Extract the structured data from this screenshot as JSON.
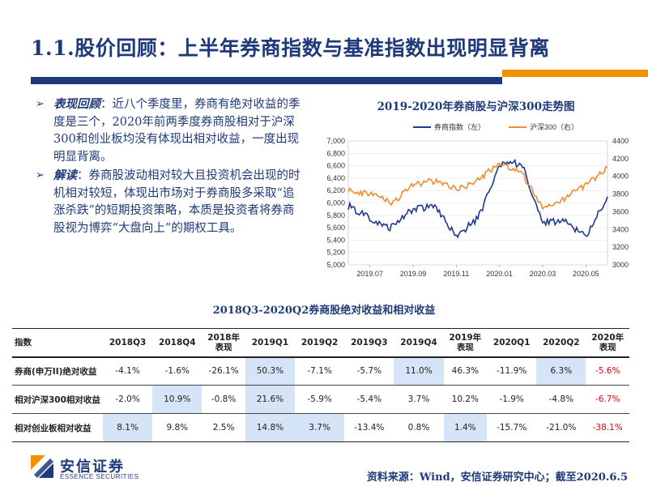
{
  "header": {
    "title": "1.1.股价回顾：上半年券商指数与基准指数出现明显背离"
  },
  "bullets": [
    {
      "lead": "表现回顾",
      "text": "：近八个季度里，券商有绝对收益的季度是三个，2020年前两季度券商股相对于沪深300和创业板均没有体现出相对收益，一度出现明显背离。"
    },
    {
      "lead": "解读",
      "text": "：券商股波动相对较大且投资机会出现的时机相对较短，体现出市场对于券商股多采取“追涨杀跌”的短期投资策略，本质是投资者将券商股视为博弈“大盘向上”的期权工具。"
    }
  ],
  "chart_data": {
    "type": "line",
    "title": "2019-2020年券商股与沪深300走势图",
    "x_ticks": [
      "2019.07",
      "2019.09",
      "2019.11",
      "2020.01",
      "2020.03",
      "2020.05"
    ],
    "x_range": [
      "2019.06",
      "2020.06"
    ],
    "y_left": {
      "range": [
        5000,
        7000
      ],
      "ticks": [
        "5,000",
        "5,200",
        "5,400",
        "5,600",
        "5,800",
        "6,000",
        "6,200",
        "6,400",
        "6,600",
        "6,800",
        "7,000"
      ]
    },
    "y_right": {
      "range": [
        3000,
        4400
      ],
      "ticks": [
        "3000",
        "3200",
        "3400",
        "3600",
        "3800",
        "4000",
        "4200",
        "4400"
      ]
    },
    "grid": true,
    "legend_position": "top",
    "series": [
      {
        "name": "券商指数（左）",
        "axis": "left",
        "color": "#1f3a8c",
        "x": [
          "2019.06",
          "2019.07",
          "2019.08",
          "2019.09",
          "2019.10",
          "2019.11",
          "2019.12",
          "2020.01",
          "2020.02",
          "2020.03",
          "2020.04",
          "2020.05",
          "2020.06"
        ],
        "values": [
          5950,
          5750,
          5600,
          5900,
          5950,
          5450,
          5750,
          6600,
          6650,
          5700,
          5700,
          5450,
          6100
        ]
      },
      {
        "name": "沪深300（右）",
        "axis": "right",
        "color": "#f08c32",
        "x": [
          "2019.06",
          "2019.07",
          "2019.08",
          "2019.09",
          "2019.10",
          "2019.11",
          "2019.12",
          "2020.01",
          "2020.02",
          "2020.03",
          "2020.04",
          "2020.05",
          "2020.06"
        ],
        "values": [
          3850,
          3800,
          3700,
          3900,
          3950,
          3850,
          3950,
          4150,
          4050,
          3650,
          3750,
          3900,
          4100
        ]
      }
    ]
  },
  "table": {
    "title": "2018Q3-2020Q2券商股绝对收益和相对收益",
    "headers": [
      "指数",
      "2018Q3",
      "2018Q4",
      "2018年\n表现",
      "2019Q1",
      "2019Q2",
      "2019Q3",
      "2019Q4",
      "2019年\n表现",
      "2020Q1",
      "2020Q2",
      "2020年\n表现"
    ],
    "rows": [
      [
        "券商(申万II)绝对收益",
        "-4.1%",
        "-1.6%",
        "-26.1%",
        "50.3%",
        "-7.1%",
        "-5.7%",
        "11.0%",
        "46.3%",
        "-11.9%",
        "6.3%",
        "-5.6%"
      ],
      [
        "相对沪深300相对收益",
        "-2.0%",
        "10.9%",
        "-0.8%",
        "21.6%",
        "-5.9%",
        "-5.4%",
        "3.7%",
        "10.2%",
        "-1.9%",
        "-4.8%",
        "-6.7%"
      ],
      [
        "相对创业板相对收益",
        "8.1%",
        "9.8%",
        "2.5%",
        "14.8%",
        "3.7%",
        "-13.4%",
        "0.8%",
        "1.4%",
        "-15.7%",
        "-21.0%",
        "-38.1%"
      ]
    ],
    "highlight_color": "#d6e4f7",
    "negative_color": "#e60012"
  },
  "footer": {
    "logo_cn": "安信证券",
    "logo_en": "ESSENCE SECURITIES",
    "source": "资料来源：Wind，安信证券研究中心；截至2020.6.5"
  }
}
